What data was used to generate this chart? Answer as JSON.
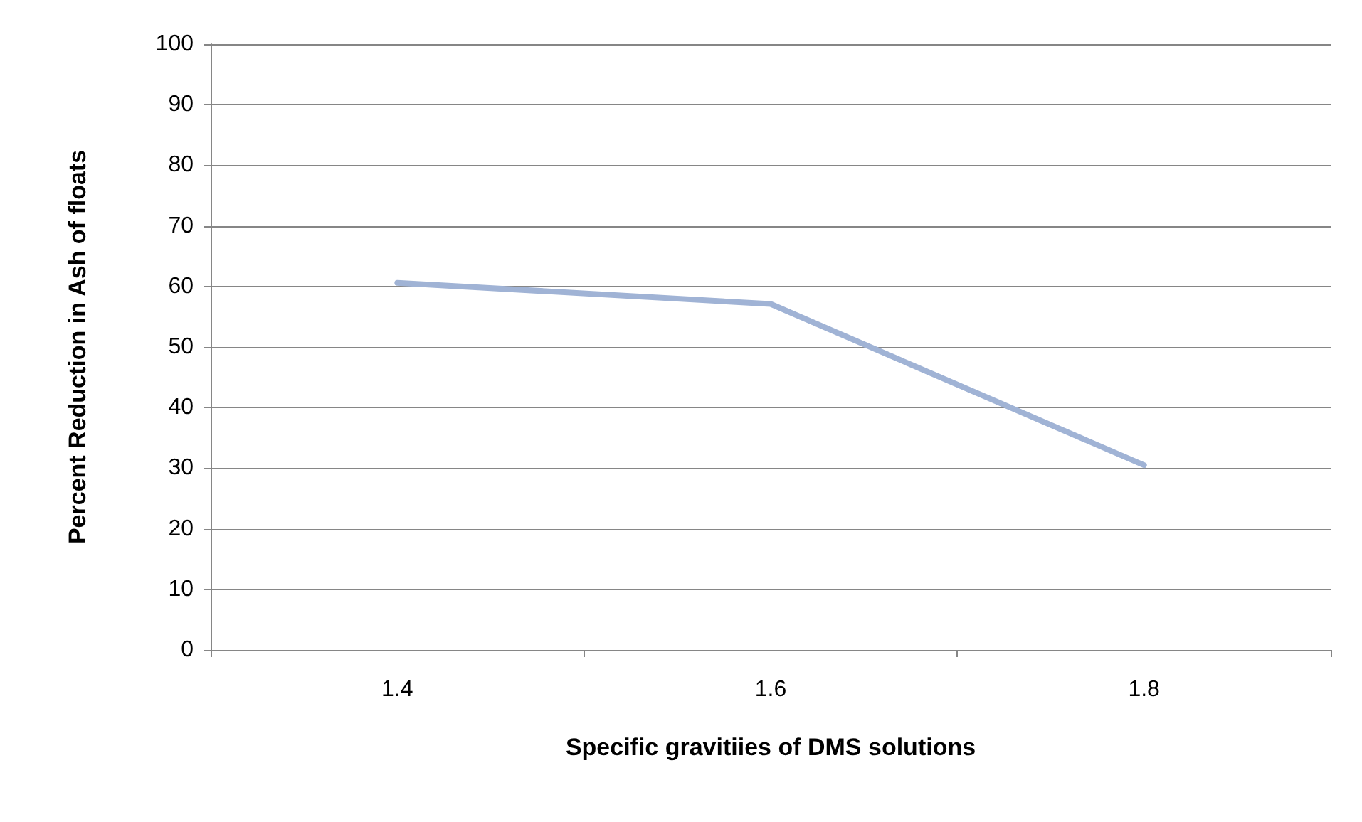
{
  "chart_data": {
    "type": "line",
    "xlabel": "Specific gravitiies of DMS solutions",
    "ylabel": "Percent Reduction in Ash of floats",
    "categories": [
      "1.4",
      "1.6",
      "1.8"
    ],
    "series": [
      {
        "color": "#a0b3d5",
        "values": [
          60.6,
          57.1,
          30.5
        ]
      }
    ],
    "ylim": [
      0,
      100
    ],
    "yticks": [
      0,
      10,
      20,
      30,
      40,
      50,
      60,
      70,
      80,
      90,
      100
    ],
    "grid": "y",
    "marker": "none",
    "line_style": "solid"
  }
}
